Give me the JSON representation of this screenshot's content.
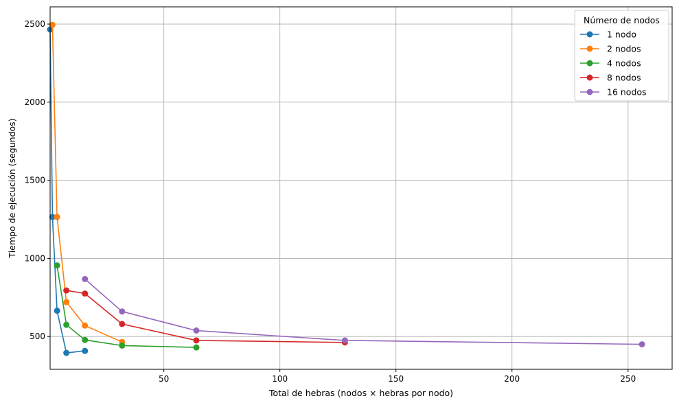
{
  "chart_data": {
    "type": "line",
    "xlabel": "Total de hebras (nodos × hebras por nodo)",
    "ylabel": "Tiempo de ejecución (segundos)",
    "xlim": [
      1,
      269
    ],
    "ylim": [
      290,
      2610
    ],
    "xticks": [
      50,
      100,
      150,
      200,
      250
    ],
    "yticks": [
      500,
      1000,
      1500,
      2000,
      2500
    ],
    "grid": true,
    "legend": {
      "title": "Número de nodos",
      "position": "top-right"
    },
    "series": [
      {
        "name": "1 nodo",
        "color": "#1f77b4",
        "x": [
          1,
          2,
          4,
          8,
          16
        ],
        "y": [
          2465,
          1265,
          665,
          395,
          408
        ]
      },
      {
        "name": "2 nodos",
        "color": "#ff7f0e",
        "x": [
          2,
          4,
          8,
          16,
          32
        ],
        "y": [
          2495,
          1265,
          720,
          570,
          465
        ]
      },
      {
        "name": "4 nodos",
        "color": "#2ca02c",
        "x": [
          4,
          8,
          16,
          32,
          64
        ],
        "y": [
          955,
          575,
          478,
          442,
          430
        ]
      },
      {
        "name": "8 nodos",
        "color": "#d62728",
        "x": [
          8,
          16,
          32,
          64,
          128
        ],
        "y": [
          795,
          775,
          580,
          475,
          462
        ]
      },
      {
        "name": "16 nodos",
        "color": "#9467bd",
        "x": [
          16,
          32,
          64,
          128,
          256
        ],
        "y": [
          868,
          660,
          538,
          475,
          450
        ]
      }
    ]
  }
}
